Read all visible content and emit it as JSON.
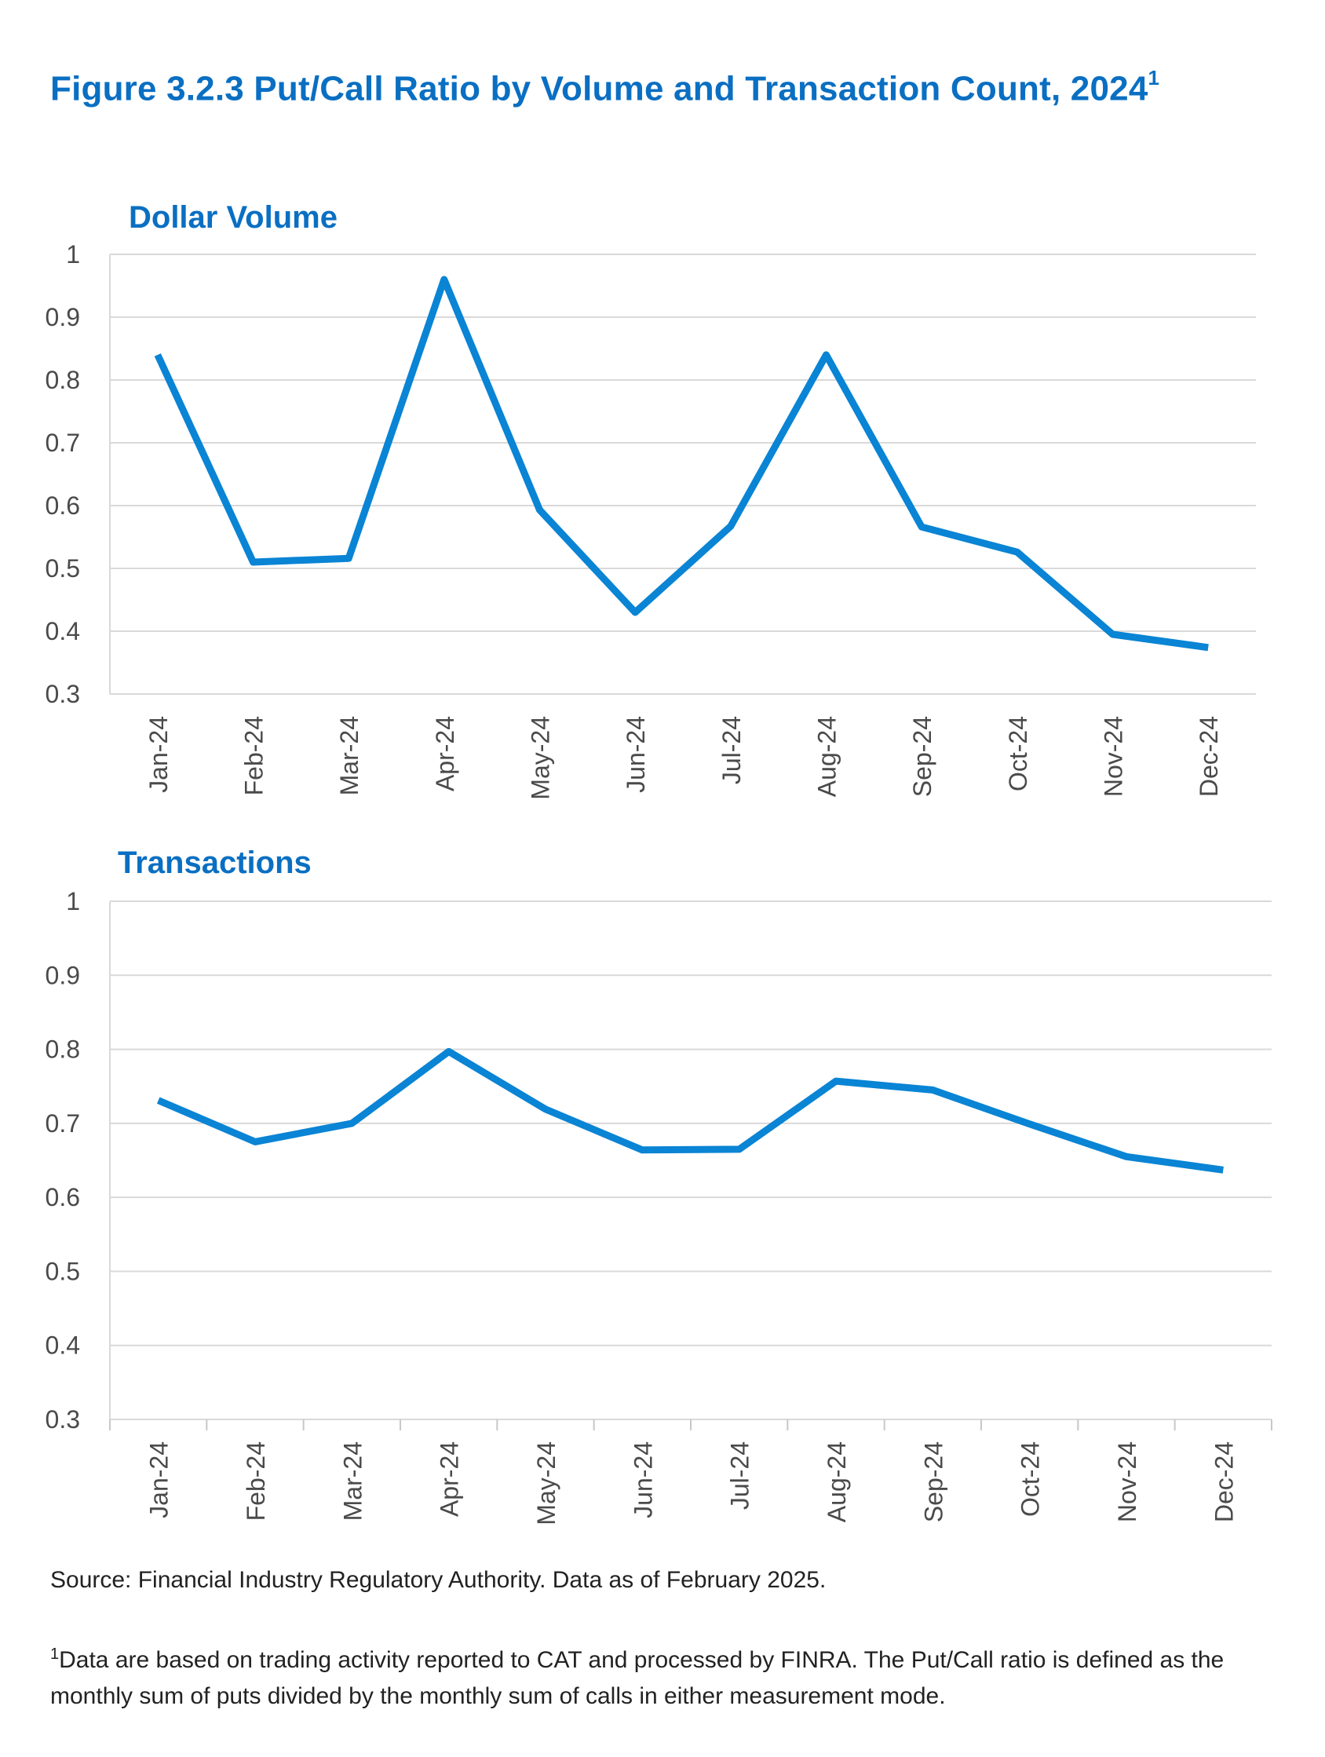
{
  "figure": {
    "title": "Figure 3.2.3 Put/Call Ratio by Volume and Transaction Count, 2024",
    "title_sup": "1",
    "source": "Source: Financial Industry Regulatory Authority. Data as of February 2025.",
    "note_sup": "1",
    "note": "Data are based on trading activity reported to CAT and processed by FINRA. The Put/Call ratio is defined as the monthly sum of puts divided by the monthly sum of calls in either measurement mode."
  },
  "chart_data": [
    {
      "type": "line",
      "title": "Dollar Volume",
      "categories": [
        "Jan-24",
        "Feb-24",
        "Mar-24",
        "Apr-24",
        "May-24",
        "Jun-24",
        "Jul-24",
        "Aug-24",
        "Sep-24",
        "Oct-24",
        "Nov-24",
        "Dec-24"
      ],
      "series": [
        {
          "name": "Dollar Volume",
          "values": [
            0.84,
            0.51,
            0.516,
            0.96,
            0.593,
            0.43,
            0.567,
            0.84,
            0.566,
            0.526,
            0.395,
            0.374
          ]
        }
      ],
      "ylim": [
        0.3,
        1
      ],
      "yticks": [
        "1",
        "0.9",
        "0.8",
        "0.7",
        "0.6",
        "0.5",
        "0.4",
        "0.3"
      ],
      "grid": true,
      "color": "#0a84d4"
    },
    {
      "type": "line",
      "title": "Transactions",
      "categories": [
        "Jan-24",
        "Feb-24",
        "Mar-24",
        "Apr-24",
        "May-24",
        "Jun-24",
        "Jul-24",
        "Aug-24",
        "Sep-24",
        "Oct-24",
        "Nov-24",
        "Dec-24"
      ],
      "series": [
        {
          "name": "Transactions",
          "values": [
            0.731,
            0.675,
            0.7,
            0.797,
            0.719,
            0.664,
            0.665,
            0.757,
            0.745,
            0.699,
            0.655,
            0.637
          ]
        }
      ],
      "ylim": [
        0.3,
        1
      ],
      "yticks": [
        "1",
        "0.9",
        "0.8",
        "0.7",
        "0.6",
        "0.5",
        "0.4",
        "0.3"
      ],
      "grid": true,
      "color": "#0a84d4"
    }
  ]
}
